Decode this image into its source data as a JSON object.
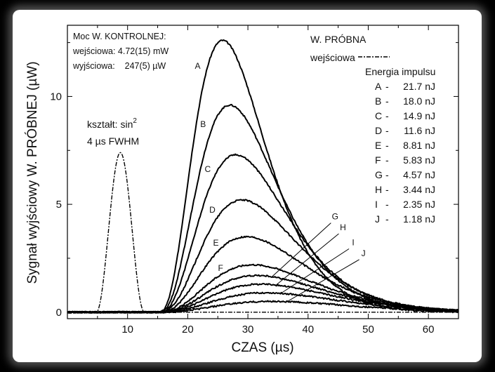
{
  "chart_data": {
    "type": "line",
    "title": "",
    "xlabel": "CZAS (µs)",
    "ylabel": "Sygnał wyjściowy W. PRÓBNEJ (µW)",
    "xlim": [
      0,
      65
    ],
    "ylim": [
      -0.3,
      13.3
    ],
    "x_ticks": [
      10,
      20,
      30,
      40,
      50,
      60
    ],
    "y_ticks": [
      0,
      5,
      10
    ],
    "grid": false,
    "control_note": {
      "heading": "Moc W. KONTROLNEJ:",
      "input": "wejściowa: 4.72(15) mW",
      "output": "wyjściowa:    247(5) µW"
    },
    "pulse_note": {
      "shape": "kształt: sin",
      "shape_sup": "2",
      "fwhm": "4 µs FWHM"
    },
    "legend": {
      "title": "W. PRÓBNA",
      "input_label": "wejściowa",
      "energy_title": "Energia impulsu",
      "placement": "top-right"
    },
    "input_pulse": {
      "name": "wejściowa",
      "center": 8.8,
      "peak": 7.4,
      "fwhm": 4
    },
    "series": [
      {
        "name": "A",
        "energy": "21.7 nJ",
        "peak": 12.6,
        "peak_x": 25.8
      },
      {
        "name": "B",
        "energy": "18.0 nJ",
        "peak": 9.6,
        "peak_x": 27.0
      },
      {
        "name": "C",
        "energy": "14.9 nJ",
        "peak": 7.3,
        "peak_x": 28.0
      },
      {
        "name": "D",
        "energy": "11.6 nJ",
        "peak": 5.2,
        "peak_x": 29.0
      },
      {
        "name": "E",
        "energy": "8.81 nJ",
        "peak": 3.5,
        "peak_x": 29.8
      },
      {
        "name": "F",
        "energy": "5.83 nJ",
        "peak": 2.2,
        "peak_x": 30.8
      },
      {
        "name": "G",
        "energy": "4.57 nJ",
        "peak": 1.7,
        "peak_x": 31.5
      },
      {
        "name": "H",
        "energy": "3.44 nJ",
        "peak": 1.3,
        "peak_x": 32.2
      },
      {
        "name": "I",
        "energy": "2.35 nJ",
        "peak": 0.9,
        "peak_x": 33.0
      },
      {
        "name": "J",
        "energy": "1.18 nJ",
        "peak": 0.5,
        "peak_x": 34.0
      }
    ]
  }
}
